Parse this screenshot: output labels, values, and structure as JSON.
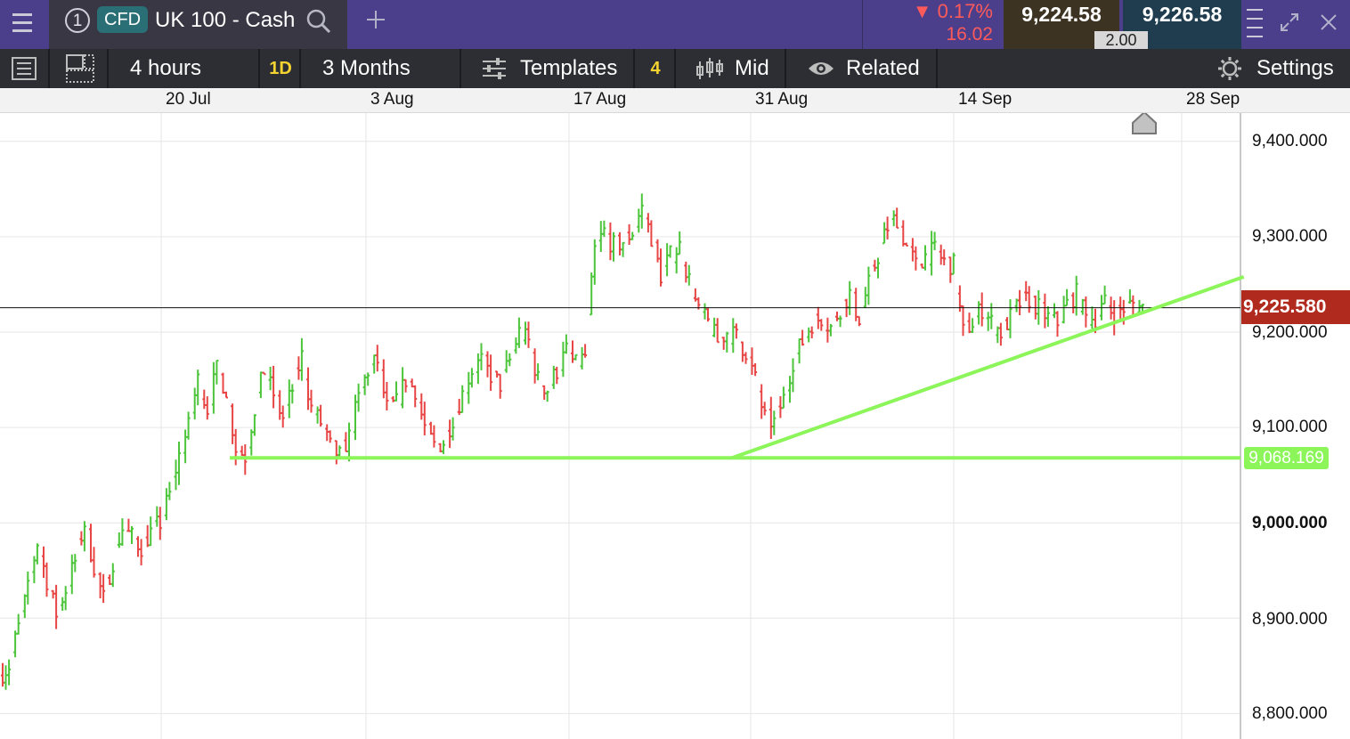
{
  "header": {
    "tab_number": "1",
    "instrument_type": "CFD",
    "instrument_name": "UK 100 - Cash",
    "change_percent": "▼ 0.17%",
    "change_points": "16.02",
    "sell_price": "9,224.58",
    "buy_price": "9,226.58",
    "spread": "2.00",
    "colors": {
      "header_bg": "#4b3f8c",
      "sell_bg": "#3d3323",
      "buy_bg": "#1f3d4e",
      "down": "#ff5a5a"
    }
  },
  "toolbar": {
    "interval": "4 hours",
    "period_badge": "1D",
    "range": "3 Months",
    "templates": "Templates",
    "templates_count": "4",
    "price_type": "Mid",
    "related": "Related",
    "settings": "Settings"
  },
  "chart_data": {
    "type": "ohlc",
    "x_axis": {
      "labels": [
        "20 Jul",
        "3 Aug",
        "17 Aug",
        "31 Aug",
        "14 Sep",
        "28 Sep"
      ]
    },
    "y_axis": {
      "ticks": [
        "9,400.000",
        "9,300.000",
        "9,200.000",
        "9,100.000",
        "9,000.000",
        "8,900.000",
        "8,800.000"
      ],
      "range": [
        8775,
        9440
      ]
    },
    "current_price": 9225.58,
    "current_price_label": "9,225.580",
    "support_level": 9068.169,
    "support_label": "9,068.169",
    "trendline": {
      "from": [
        "2025-08-28",
        9068
      ],
      "to": [
        "2025-10-02",
        9258
      ]
    },
    "colors": {
      "up": "#4cc53b",
      "down": "#e84545",
      "support": "#8cf55a",
      "price_tag": "#b02a1e",
      "grid": "#e6e6e6"
    },
    "closes": [
      8850,
      8890,
      8930,
      8980,
      8940,
      8905,
      8930,
      8960,
      9000,
      8955,
      8920,
      8960,
      8995,
      8985,
      8975,
      8990,
      9000,
      9030,
      9070,
      9100,
      9150,
      9120,
      9160,
      9140,
      9080,
      9070,
      9120,
      9160,
      9135,
      9110,
      9140,
      9175,
      9120,
      9105,
      9080,
      9070,
      9090,
      9130,
      9160,
      9170,
      9120,
      9125,
      9150,
      9140,
      9100,
      9080,
      9085,
      9110,
      9135,
      9160,
      9170,
      9155,
      9145,
      9170,
      9200,
      9190,
      9150,
      9140,
      9160,
      9180,
      9165,
      9175,
      9285,
      9305,
      9290,
      9295,
      9305,
      9330,
      9300,
      9260,
      9280,
      9290,
      9255,
      9220,
      9210,
      9190,
      9200,
      9195,
      9180,
      9150,
      9110,
      9105,
      9130,
      9170,
      9190,
      9210,
      9215,
      9205,
      9225,
      9240,
      9215,
      9250,
      9280,
      9310,
      9320,
      9290,
      9270,
      9280,
      9285,
      9275,
      9270,
      9200,
      9210,
      9225,
      9210,
      9200,
      9215,
      9230,
      9235,
      9225,
      9215,
      9210,
      9230,
      9240,
      9215,
      9215,
      9230,
      9220,
      9225,
      9230,
      9225
    ]
  }
}
